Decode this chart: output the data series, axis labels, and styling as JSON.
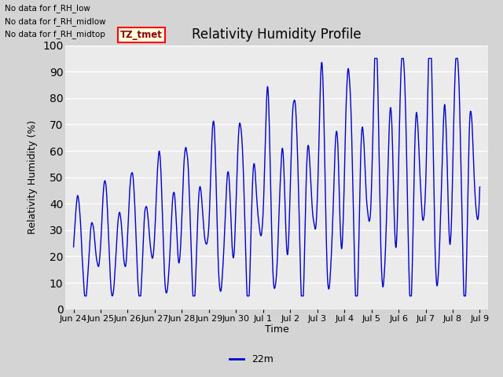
{
  "title": "Relativity Humidity Profile",
  "ylabel": "Relativity Humidity (%)",
  "xlabel": "Time",
  "legend_label": "22m",
  "line_color": "#0000cc",
  "fig_bg_color": "#d4d4d4",
  "plot_bg_color": "#ebebeb",
  "grid_color": "#ffffff",
  "ylim": [
    0,
    100
  ],
  "yticks": [
    0,
    10,
    20,
    30,
    40,
    50,
    60,
    70,
    80,
    90,
    100
  ],
  "x_tick_labels": [
    "Jun 24",
    "Jun 25",
    "Jun 26",
    "Jun 27",
    "Jun 28",
    "Jun 29",
    "Jun 30",
    "Jul 1",
    "Jul 2",
    "Jul 3",
    "Jul 4",
    "Jul 5",
    "Jul 6",
    "Jul 7",
    "Jul 8",
    "Jul 9"
  ],
  "x_tick_positions": [
    0,
    1,
    2,
    3,
    4,
    5,
    6,
    7,
    8,
    9,
    10,
    11,
    12,
    13,
    14,
    15
  ],
  "annotations": [
    "No data for f_RH_low",
    "No data for f_RH_midlow",
    "No data for f_RH_midtop"
  ],
  "tz_label": "TZ_tmet",
  "title_fontsize": 12,
  "label_fontsize": 9,
  "tick_fontsize": 8
}
